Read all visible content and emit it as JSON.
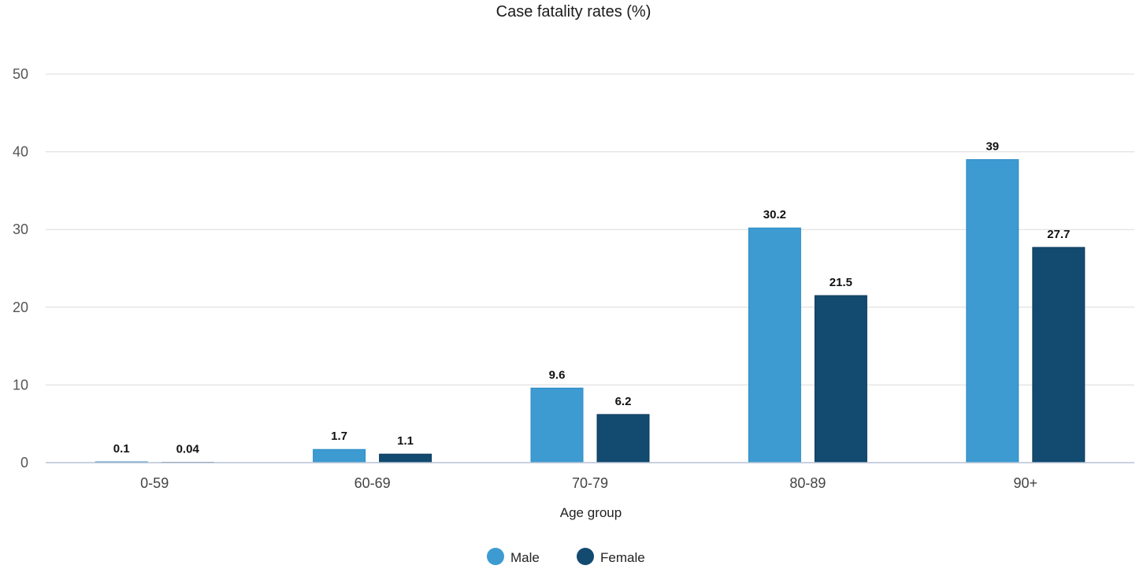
{
  "chart_data": {
    "type": "bar",
    "title": "Case fatality rates (%)",
    "xlabel": "Age group",
    "ylabel": "",
    "categories": [
      "0-59",
      "60-69",
      "70-79",
      "80-89",
      "90+"
    ],
    "series": [
      {
        "name": "Male",
        "color": "#3d9bd1",
        "values": [
          0.1,
          1.7,
          9.6,
          30.2,
          39
        ],
        "labels": [
          "0.1",
          "1.7",
          "9.6",
          "30.2",
          "39"
        ]
      },
      {
        "name": "Female",
        "color": "#134a70",
        "values": [
          0.04,
          1.1,
          6.2,
          21.5,
          27.7
        ],
        "labels": [
          "0.04",
          "1.1",
          "6.2",
          "21.5",
          "27.7"
        ]
      }
    ],
    "ylim": [
      0,
      50
    ],
    "yticks": [
      0,
      10,
      20,
      30,
      40,
      50
    ],
    "grid": true,
    "legend_position": "bottom-center"
  }
}
